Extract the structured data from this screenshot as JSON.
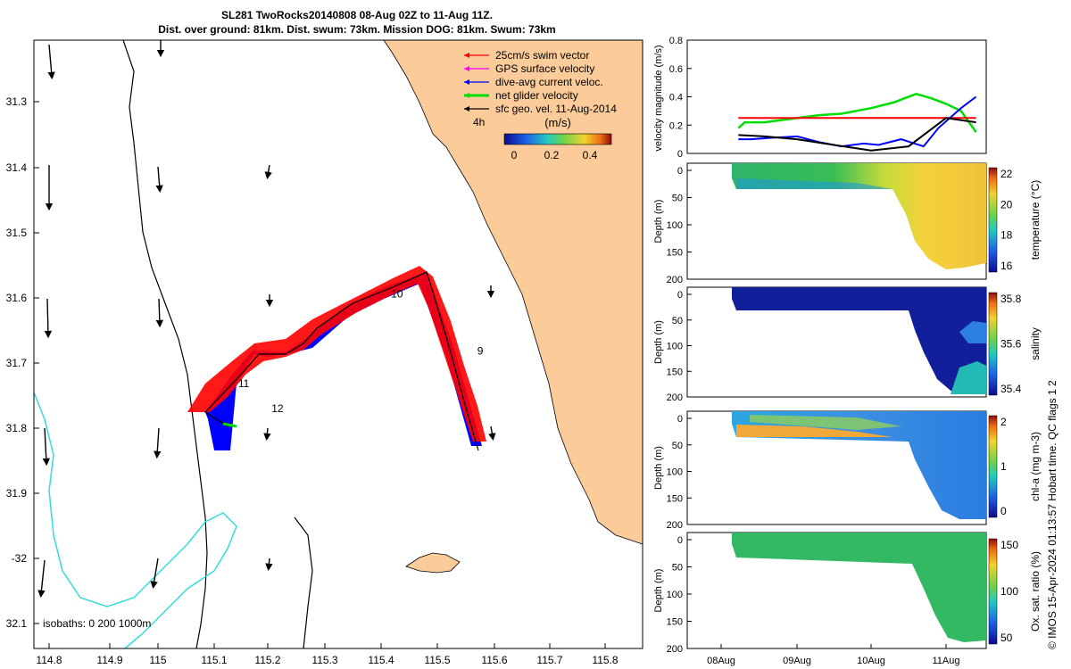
{
  "title": {
    "line1": "SL281 TwoRocks20140808 08-Aug 02Z to 11-Aug 11Z.",
    "line2": "Dist. over ground: 81km. Dist. swum: 73km. Mission DOG: 81km. Swum: 73km"
  },
  "footer": "© IMOS 15-Apr-2024 01:13:57 Hobart time. QC flags 1 2",
  "map": {
    "lon_ticks": [
      "114.8",
      "114.9",
      "115",
      "115.1",
      "115.2",
      "115.3",
      "115.4",
      "115.5",
      "115.6",
      "115.7",
      "115.8"
    ],
    "lat_ticks": [
      "31.3",
      "31.4",
      "31.5",
      "31.6",
      "31.7",
      "31.8",
      "31.9",
      "-32",
      "32.1"
    ],
    "isobaths_label": "isobaths: 0   200  1000m",
    "legend": [
      {
        "label": "25cm/s swim vector",
        "color": "#ff0000"
      },
      {
        "label": "GPS surface velocity",
        "color": "#ff00ff"
      },
      {
        "label": "dive-avg current veloc.",
        "color": "#0000ff"
      },
      {
        "label": "net glider velocity",
        "color": "#00dd00"
      },
      {
        "label": "sfc geo. vel. 11-Aug-2014",
        "color": "#000000"
      }
    ],
    "colorbar": {
      "title": "(m/s)",
      "ticks": [
        "0",
        "0.2",
        "0.4"
      ]
    },
    "scale_label": "4h",
    "day_labels": [
      {
        "text": "9",
        "lon": 115.57,
        "lat": 31.688
      },
      {
        "text": "10",
        "lon": 115.415,
        "lat": 31.6
      },
      {
        "text": "11",
        "lon": 115.14,
        "lat": 31.738
      },
      {
        "text": "12",
        "lon": 115.2,
        "lat": 31.776
      }
    ],
    "colors": {
      "land": "#fbcb9a",
      "track_blue": "#0000ff",
      "swim_red": "#ff0000",
      "isobath200": "#000000",
      "isobath1000": "#33dddd"
    }
  },
  "chart_data": [
    {
      "type": "line",
      "ylabel": "velocity magnitude (m/s)",
      "ylim": [
        0,
        0.8
      ],
      "yticks": [
        "0",
        "0.2",
        "0.4",
        "0.6",
        "0.8"
      ],
      "x_date_ticks": [
        "08Aug",
        "09Aug",
        "10Aug",
        "11Aug"
      ],
      "series": [
        {
          "color": "#00dd00",
          "x": [
            8.1,
            8.2,
            8.5,
            9.0,
            9.3,
            9.6,
            9.8,
            10.0,
            10.3,
            10.6,
            10.8,
            11.0,
            11.2,
            11.4
          ],
          "y": [
            0.18,
            0.22,
            0.22,
            0.25,
            0.27,
            0.28,
            0.3,
            0.32,
            0.36,
            0.42,
            0.39,
            0.35,
            0.3,
            0.15
          ]
        },
        {
          "color": "#ff0000",
          "x": [
            8.1,
            8.5,
            9.0,
            9.5,
            10.0,
            10.5,
            11.0,
            11.4
          ],
          "y": [
            0.25,
            0.25,
            0.25,
            0.25,
            0.25,
            0.25,
            0.25,
            0.25
          ]
        },
        {
          "color": "#0000ff",
          "x": [
            8.1,
            8.3,
            8.6,
            9.0,
            9.3,
            9.6,
            9.9,
            10.1,
            10.4,
            10.7,
            10.9,
            11.2,
            11.4
          ],
          "y": [
            0.1,
            0.1,
            0.11,
            0.12,
            0.08,
            0.05,
            0.07,
            0.06,
            0.1,
            0.05,
            0.18,
            0.32,
            0.4
          ]
        },
        {
          "color": "#000000",
          "x": [
            8.1,
            8.5,
            9.0,
            9.5,
            10.0,
            10.5,
            11.0,
            11.4
          ],
          "y": [
            0.13,
            0.12,
            0.1,
            0.06,
            0.02,
            0.05,
            0.25,
            0.22
          ]
        }
      ]
    },
    {
      "type": "heatmap",
      "ylabel": "Depth (m)",
      "yticks": [
        "0",
        "50",
        "100",
        "150",
        "200"
      ],
      "colorbar_label": "temperature (°C)",
      "colorbar_ticks": [
        "22",
        "20",
        "18",
        "16"
      ],
      "clim": [
        15.5,
        22.3
      ]
    },
    {
      "type": "heatmap",
      "ylabel": "Depth (m)",
      "yticks": [
        "0",
        "50",
        "100",
        "150",
        "200"
      ],
      "colorbar_label": "salinity",
      "colorbar_ticks": [
        "35.8",
        "35.6",
        "35.4"
      ],
      "clim": [
        35.3,
        35.95
      ]
    },
    {
      "type": "heatmap",
      "ylabel": "Depth (m)",
      "yticks": [
        "0",
        "50",
        "100",
        "150",
        "200"
      ],
      "colorbar_label": "chl-a (mg m-3)",
      "colorbar_ticks": [
        "2",
        "1",
        "0"
      ],
      "clim": [
        0,
        2
      ]
    },
    {
      "type": "heatmap",
      "ylabel": "Depth (m)",
      "yticks": [
        "0",
        "50",
        "100",
        "150",
        "200"
      ],
      "colorbar_label": "Ox. sat. ratio (%)",
      "colorbar_ticks": [
        "150",
        "100",
        "50"
      ],
      "clim": [
        25,
        175
      ]
    }
  ]
}
